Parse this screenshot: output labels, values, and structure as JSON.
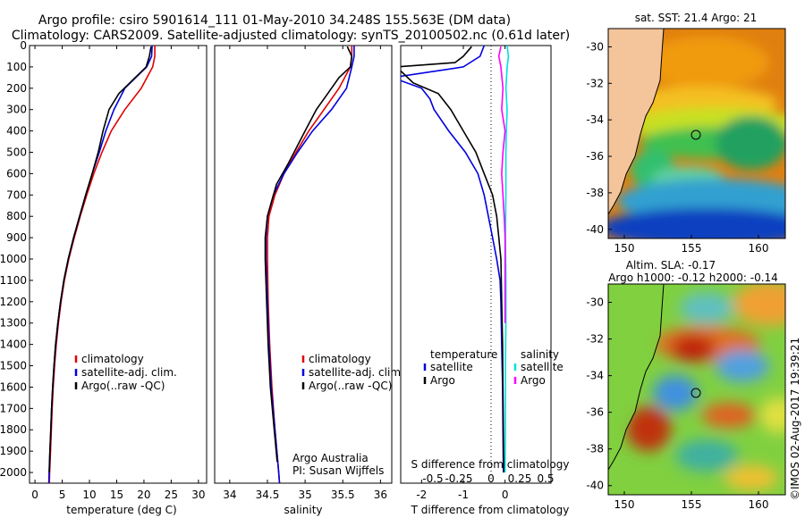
{
  "header": {
    "line1": "Argo profile: csiro 5901614_111 01-May-2010 34.248S 155.563E (DM data)",
    "line2": "Climatology: CARS2009. Satellite-adjusted climatology: synTS_20100502.nc (0.61d later)"
  },
  "colors": {
    "climatology": "#e00000",
    "satellite": "#0000e0",
    "argo": "#000000",
    "sal_satellite": "#00e0e0",
    "sal_argo": "#ff00ff",
    "land": "#f4c49a"
  },
  "chart_data": [
    {
      "type": "line",
      "xlabel": "temperature (deg C)",
      "ylim": [
        2050,
        0
      ],
      "xlim": [
        -1,
        31.5
      ],
      "xticks": [
        0,
        5,
        10,
        15,
        20,
        25,
        30
      ],
      "yticks": [
        0,
        100,
        200,
        300,
        400,
        500,
        600,
        700,
        800,
        900,
        1000,
        1100,
        1200,
        1300,
        1400,
        1500,
        1600,
        1700,
        1800,
        1900,
        2000
      ],
      "legend": [
        "climatology",
        "satellite-adj. clim.",
        "Argo(..raw -QC)"
      ],
      "legend_position": "lower-center",
      "series": [
        {
          "name": "climatology",
          "color": "#e00000",
          "points": [
            [
              22,
              0
            ],
            [
              22,
              50
            ],
            [
              21.6,
              100
            ],
            [
              19.5,
              200
            ],
            [
              16.5,
              300
            ],
            [
              14,
              400
            ],
            [
              12.3,
              500
            ],
            [
              10.8,
              600
            ],
            [
              9.5,
              700
            ],
            [
              8.3,
              800
            ],
            [
              7.2,
              900
            ],
            [
              6.2,
              1000
            ],
            [
              5.4,
              1100
            ],
            [
              4.8,
              1200
            ],
            [
              4.3,
              1300
            ],
            [
              3.9,
              1400
            ],
            [
              3.6,
              1500
            ],
            [
              3.35,
              1600
            ],
            [
              3.15,
              1700
            ],
            [
              3,
              1800
            ],
            [
              2.85,
              1900
            ],
            [
              2.7,
              2000
            ],
            [
              2.65,
              2050
            ]
          ]
        },
        {
          "name": "satellite-adj. clim.",
          "color": "#0000e0",
          "points": [
            [
              21.5,
              0
            ],
            [
              21.4,
              50
            ],
            [
              20.5,
              100
            ],
            [
              16.5,
              200
            ],
            [
              14.5,
              300
            ],
            [
              13,
              400
            ],
            [
              11.8,
              500
            ],
            [
              10.5,
              600
            ],
            [
              9.3,
              700
            ],
            [
              8.2,
              800
            ],
            [
              7.1,
              900
            ],
            [
              6.1,
              1000
            ],
            [
              5.3,
              1100
            ],
            [
              4.7,
              1200
            ],
            [
              4.2,
              1300
            ],
            [
              3.8,
              1400
            ],
            [
              3.5,
              1500
            ],
            [
              3.25,
              1600
            ],
            [
              3.05,
              1700
            ],
            [
              2.9,
              1800
            ],
            [
              2.75,
              1900
            ],
            [
              2.6,
              2000
            ],
            [
              2.55,
              2050
            ]
          ]
        },
        {
          "name": "Argo(..raw -QC)",
          "color": "#000000",
          "points": [
            [
              21.3,
              5
            ],
            [
              21,
              50
            ],
            [
              20.4,
              100
            ],
            [
              17.4,
              175
            ],
            [
              15.4,
              225
            ],
            [
              13.6,
              300
            ],
            [
              12.5,
              400
            ],
            [
              11.6,
              500
            ],
            [
              10.5,
              600
            ],
            [
              9.3,
              700
            ],
            [
              8.2,
              800
            ],
            [
              7.1,
              900
            ],
            [
              6.1,
              1000
            ],
            [
              5.3,
              1100
            ],
            [
              4.7,
              1200
            ],
            [
              4.2,
              1300
            ],
            [
              3.8,
              1400
            ],
            [
              3.5,
              1500
            ],
            [
              3.25,
              1600
            ],
            [
              3.05,
              1700
            ],
            [
              2.9,
              1800
            ],
            [
              2.75,
              1900
            ],
            [
              2.62,
              2000
            ]
          ]
        }
      ]
    },
    {
      "type": "line",
      "xlabel": "salinity",
      "ylim": [
        2050,
        0
      ],
      "xlim": [
        33.8,
        36.15
      ],
      "xticks": [
        34,
        34.5,
        35,
        35.5,
        36
      ],
      "legend": [
        "climatology",
        "satellite-adj. clim.",
        "Argo(..raw -QC)"
      ],
      "legend_position": "lower-center",
      "annotation": [
        "Argo Australia",
        "PI: Susan Wijffels"
      ],
      "series": [
        {
          "name": "climatology",
          "color": "#e00000",
          "points": [
            [
              35.62,
              0
            ],
            [
              35.62,
              50
            ],
            [
              35.6,
              100
            ],
            [
              35.45,
              200
            ],
            [
              35.25,
              300
            ],
            [
              35.05,
              400
            ],
            [
              34.88,
              500
            ],
            [
              34.72,
              600
            ],
            [
              34.6,
              700
            ],
            [
              34.52,
              800
            ],
            [
              34.5,
              900
            ],
            [
              34.5,
              1000
            ],
            [
              34.51,
              1200
            ],
            [
              34.53,
              1400
            ],
            [
              34.56,
              1600
            ],
            [
              34.6,
              1800
            ],
            [
              34.65,
              2000
            ],
            [
              34.66,
              2050
            ]
          ]
        },
        {
          "name": "satellite-adj. clim.",
          "color": "#0000e0",
          "points": [
            [
              35.65,
              0
            ],
            [
              35.65,
              50
            ],
            [
              35.62,
              100
            ],
            [
              35.55,
              200
            ],
            [
              35.35,
              300
            ],
            [
              35.1,
              400
            ],
            [
              34.9,
              500
            ],
            [
              34.72,
              600
            ],
            [
              34.58,
              700
            ],
            [
              34.5,
              800
            ],
            [
              34.48,
              900
            ],
            [
              34.48,
              1000
            ],
            [
              34.5,
              1200
            ],
            [
              34.52,
              1400
            ],
            [
              34.55,
              1600
            ],
            [
              34.6,
              1800
            ],
            [
              34.65,
              2000
            ],
            [
              34.66,
              2050
            ]
          ]
        },
        {
          "name": "Argo(..raw -QC)",
          "color": "#000000",
          "points": [
            [
              35.56,
              5
            ],
            [
              35.62,
              50
            ],
            [
              35.6,
              100
            ],
            [
              35.45,
              150
            ],
            [
              35.3,
              225
            ],
            [
              35.15,
              300
            ],
            [
              35,
              400
            ],
            [
              34.78,
              550
            ],
            [
              34.62,
              650
            ],
            [
              34.5,
              800
            ],
            [
              34.47,
              900
            ],
            [
              34.47,
              1000
            ],
            [
              34.49,
              1200
            ],
            [
              34.51,
              1400
            ],
            [
              34.54,
              1600
            ],
            [
              34.59,
              1800
            ],
            [
              34.63,
              1950
            ]
          ]
        }
      ]
    },
    {
      "type": "line",
      "xlabel": "T difference from climatology",
      "xlabel_top": "S difference from climatology",
      "ylim": [
        2050,
        0
      ],
      "xlim": [
        -2.5,
        1.1
      ],
      "xticks": [
        -2,
        -1,
        0
      ],
      "xticks_sal_labels": [
        "-0.5",
        "-0.25",
        "0",
        "0.25",
        "0.5"
      ],
      "legend": [
        "temperature",
        "satellite",
        "Argo",
        "salinity",
        "satellite",
        "Argo"
      ],
      "legend_position": "lower-center",
      "series": [
        {
          "name": "satellite",
          "color": "#0000e0",
          "points": [
            [
              -0.5,
              0
            ],
            [
              -0.6,
              50
            ],
            [
              -1,
              100
            ],
            [
              -2.7,
              150
            ],
            [
              -2,
              200
            ],
            [
              -1.8,
              250
            ],
            [
              -1.7,
              300
            ],
            [
              -1.35,
              400
            ],
            [
              -0.95,
              500
            ],
            [
              -0.65,
              600
            ],
            [
              -0.5,
              700
            ],
            [
              -0.4,
              800
            ],
            [
              -0.3,
              900
            ],
            [
              -0.2,
              1000
            ],
            [
              -0.12,
              1100
            ],
            [
              -0.1,
              1200
            ],
            [
              -0.08,
              1400
            ],
            [
              -0.06,
              1600
            ],
            [
              -0.05,
              1800
            ],
            [
              -0.04,
              2000
            ]
          ]
        },
        {
          "name": "Argo",
          "color": "#000000",
          "points": [
            [
              -0.8,
              5
            ],
            [
              -1,
              50
            ],
            [
              -1.2,
              80
            ],
            [
              -2.6,
              100
            ],
            [
              -2.2,
              175
            ],
            [
              -1.6,
              225
            ],
            [
              -1.3,
              300
            ],
            [
              -1,
              400
            ],
            [
              -0.7,
              500
            ],
            [
              -0.5,
              600
            ],
            [
              -0.3,
              700
            ],
            [
              -0.2,
              800
            ],
            [
              -0.15,
              900
            ],
            [
              -0.1,
              1000
            ],
            [
              -0.08,
              1200
            ],
            [
              -0.06,
              1400
            ],
            [
              -0.05,
              1600
            ],
            [
              -0.04,
              1800
            ],
            [
              -0.03,
              2000
            ]
          ]
        },
        {
          "name": "salinity satellite",
          "color": "#00e0e0",
          "points": [
            [
              0.05,
              0
            ],
            [
              0.08,
              50
            ],
            [
              0.05,
              100
            ],
            [
              0.02,
              200
            ],
            [
              0.05,
              300
            ],
            [
              0.03,
              400
            ],
            [
              0.02,
              500
            ],
            [
              0.02,
              700
            ],
            [
              0.01,
              900
            ],
            [
              0.02,
              1100
            ],
            [
              0.02,
              1300
            ],
            [
              0.01,
              1500
            ],
            [
              0.01,
              1800
            ],
            [
              0,
              2000
            ]
          ]
        },
        {
          "name": "salinity Argo",
          "color": "#ff00ff",
          "points": [
            [
              -0.1,
              5
            ],
            [
              -0.15,
              50
            ],
            [
              -0.1,
              100
            ],
            [
              -0.05,
              200
            ],
            [
              -0.08,
              300
            ],
            [
              0,
              400
            ],
            [
              -0.05,
              500
            ],
            [
              -0.08,
              600
            ],
            [
              -0.05,
              700
            ],
            [
              -0.02,
              800
            ],
            [
              0,
              900
            ],
            [
              0,
              1000
            ],
            [
              0,
              1100
            ],
            [
              0,
              1200
            ],
            [
              0,
              1300
            ]
          ]
        }
      ]
    }
  ],
  "maps": {
    "sst": {
      "title": "sat. SST: 21.4 Argo: 21",
      "yticks": [
        "-30",
        "-32",
        "-34",
        "-36",
        "-38",
        "-40"
      ],
      "xticks": [
        "150",
        "155",
        "160"
      ],
      "marker": {
        "lon": 155.563,
        "lat": -34.248
      }
    },
    "sla": {
      "title1": "Altim. SLA: -0.17",
      "title2": "Argo h1000: -0.12 h2000: -0.14",
      "yticks": [
        "-30",
        "-32",
        "-34",
        "-36",
        "-38",
        "-40"
      ],
      "xticks": [
        "150",
        "155",
        "160"
      ],
      "marker": {
        "lon": 155.563,
        "lat": -34.248
      }
    }
  },
  "footer": {
    "credit": "©IMOS 02-Aug-2017 19:39:21"
  }
}
